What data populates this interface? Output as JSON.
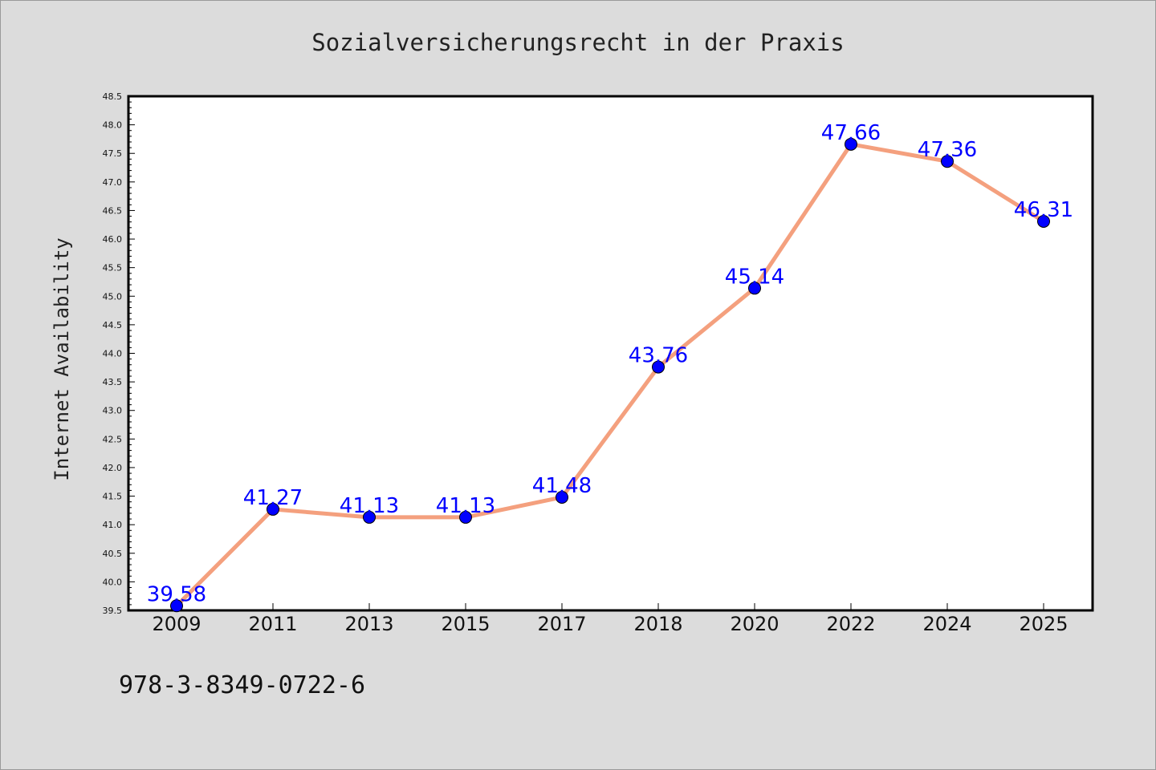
{
  "chart_data": {
    "type": "line",
    "title": "Sozialversicherungsrecht in der Praxis",
    "xlabel": "",
    "ylabel": "Internet Availability",
    "categories": [
      "2009",
      "2011",
      "2013",
      "2015",
      "2017",
      "2018",
      "2020",
      "2022",
      "2024",
      "2025"
    ],
    "series": [
      {
        "values": [
          39.58,
          41.27,
          41.13,
          41.13,
          41.48,
          43.76,
          45.14,
          47.66,
          47.36,
          46.31
        ],
        "data_labels": [
          "39.58",
          "41.27",
          "41.13",
          "41.13",
          "41.48",
          "43.76",
          "45.14",
          "47.66",
          "47.36",
          "46.31"
        ]
      }
    ],
    "ylim": [
      39.5,
      48.5
    ],
    "yticks": [
      "39.5",
      "40.0",
      "40.5",
      "41.0",
      "41.5",
      "42.0",
      "42.5",
      "43.0",
      "43.5",
      "44.0",
      "44.5",
      "45.0",
      "45.5",
      "46.0",
      "46.5",
      "47.0",
      "47.5",
      "48.0",
      "48.5"
    ],
    "grid": false,
    "line_color": "#f4a07e",
    "marker_color": "#0000ff",
    "label_color": "#0000ff"
  },
  "footer_text": "978-3-8349-0722-6"
}
